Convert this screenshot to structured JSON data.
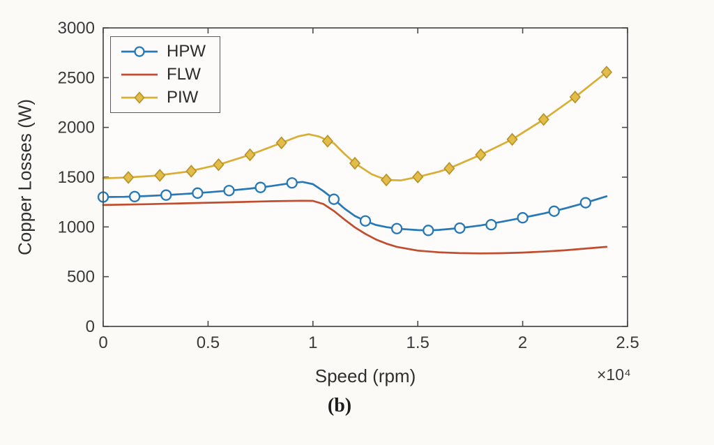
{
  "page": {
    "caption": "(b)"
  },
  "chart_data": {
    "type": "line",
    "title": "",
    "xlabel": "Speed (rpm)",
    "ylabel": "Copper Losses (W)",
    "x_offset_label": "×10⁴",
    "xlim": [
      0,
      2.5
    ],
    "ylim": [
      0,
      3000
    ],
    "x_tick_values": [
      0,
      0.5,
      1,
      1.5,
      2,
      2.5
    ],
    "x_tick_labels": [
      "0",
      "0.5",
      "1",
      "1.5",
      "2",
      "2.5"
    ],
    "y_tick_values": [
      0,
      500,
      1000,
      1500,
      2000,
      2500,
      3000
    ],
    "y_tick_labels": [
      "0",
      "500",
      "1000",
      "1500",
      "2000",
      "2500",
      "3000"
    ],
    "grid": false,
    "legend_position": "top-left",
    "x_units_note": "x values are in units of 10^4 rpm",
    "series": [
      {
        "name": "HPW",
        "color": "#2778b6",
        "marker": "circle",
        "marker_fill": "#fbfaf7",
        "marker_edge": "#2778b6",
        "line": [
          [
            0,
            1300
          ],
          [
            0.1,
            1302
          ],
          [
            0.2,
            1310
          ],
          [
            0.3,
            1320
          ],
          [
            0.4,
            1333
          ],
          [
            0.5,
            1348
          ],
          [
            0.6,
            1365
          ],
          [
            0.7,
            1385
          ],
          [
            0.8,
            1410
          ],
          [
            0.9,
            1442
          ],
          [
            0.95,
            1452
          ],
          [
            1.0,
            1430
          ],
          [
            1.05,
            1360
          ],
          [
            1.1,
            1278
          ],
          [
            1.15,
            1185
          ],
          [
            1.2,
            1110
          ],
          [
            1.25,
            1060
          ],
          [
            1.3,
            1020
          ],
          [
            1.35,
            998
          ],
          [
            1.4,
            983
          ],
          [
            1.5,
            968
          ],
          [
            1.55,
            965
          ],
          [
            1.6,
            970
          ],
          [
            1.7,
            988
          ],
          [
            1.8,
            1015
          ],
          [
            1.9,
            1052
          ],
          [
            2.0,
            1092
          ],
          [
            2.1,
            1135
          ],
          [
            2.2,
            1185
          ],
          [
            2.3,
            1243
          ],
          [
            2.4,
            1308
          ]
        ],
        "markers": [
          [
            0,
            1300
          ],
          [
            0.15,
            1305
          ],
          [
            0.3,
            1320
          ],
          [
            0.45,
            1340
          ],
          [
            0.6,
            1365
          ],
          [
            0.75,
            1397
          ],
          [
            0.9,
            1442
          ],
          [
            1.1,
            1278
          ],
          [
            1.25,
            1060
          ],
          [
            1.4,
            983
          ],
          [
            1.55,
            965
          ],
          [
            1.7,
            988
          ],
          [
            1.85,
            1022
          ],
          [
            2.0,
            1092
          ],
          [
            2.15,
            1158
          ],
          [
            2.3,
            1243
          ]
        ]
      },
      {
        "name": "FLW",
        "color": "#bf4d2e",
        "marker": "none",
        "marker_fill": "none",
        "marker_edge": "#bf4d2e",
        "line": [
          [
            0,
            1220
          ],
          [
            0.2,
            1228
          ],
          [
            0.4,
            1238
          ],
          [
            0.6,
            1248
          ],
          [
            0.8,
            1258
          ],
          [
            0.95,
            1263
          ],
          [
            1.0,
            1262
          ],
          [
            1.05,
            1230
          ],
          [
            1.1,
            1160
          ],
          [
            1.15,
            1075
          ],
          [
            1.2,
            995
          ],
          [
            1.25,
            930
          ],
          [
            1.3,
            875
          ],
          [
            1.35,
            832
          ],
          [
            1.4,
            800
          ],
          [
            1.5,
            762
          ],
          [
            1.6,
            745
          ],
          [
            1.7,
            737
          ],
          [
            1.8,
            734
          ],
          [
            1.9,
            736
          ],
          [
            2.0,
            742
          ],
          [
            2.1,
            752
          ],
          [
            2.2,
            765
          ],
          [
            2.3,
            782
          ],
          [
            2.4,
            800
          ]
        ],
        "markers": []
      },
      {
        "name": "PIW",
        "color": "#d9ae35",
        "marker": "diamond",
        "marker_fill": "#e2bd4a",
        "marker_edge": "#b8932a",
        "line": [
          [
            0,
            1488
          ],
          [
            0.12,
            1497
          ],
          [
            0.25,
            1515
          ],
          [
            0.4,
            1555
          ],
          [
            0.55,
            1625
          ],
          [
            0.7,
            1725
          ],
          [
            0.85,
            1845
          ],
          [
            0.93,
            1910
          ],
          [
            0.98,
            1932
          ],
          [
            1.03,
            1908
          ],
          [
            1.1,
            1840
          ],
          [
            1.15,
            1735
          ],
          [
            1.2,
            1640
          ],
          [
            1.28,
            1530
          ],
          [
            1.35,
            1472
          ],
          [
            1.42,
            1468
          ],
          [
            1.5,
            1502
          ],
          [
            1.6,
            1555
          ],
          [
            1.65,
            1588
          ],
          [
            1.8,
            1725
          ],
          [
            1.95,
            1880
          ],
          [
            2.1,
            2080
          ],
          [
            2.25,
            2305
          ],
          [
            2.4,
            2555
          ]
        ],
        "markers": [
          [
            0.12,
            1497
          ],
          [
            0.27,
            1518
          ],
          [
            0.42,
            1560
          ],
          [
            0.55,
            1625
          ],
          [
            0.7,
            1725
          ],
          [
            0.85,
            1845
          ],
          [
            1.07,
            1862
          ],
          [
            1.2,
            1640
          ],
          [
            1.35,
            1472
          ],
          [
            1.5,
            1502
          ],
          [
            1.65,
            1588
          ],
          [
            1.8,
            1725
          ],
          [
            1.95,
            1880
          ],
          [
            2.1,
            2080
          ],
          [
            2.25,
            2305
          ],
          [
            2.4,
            2555
          ]
        ]
      }
    ]
  }
}
